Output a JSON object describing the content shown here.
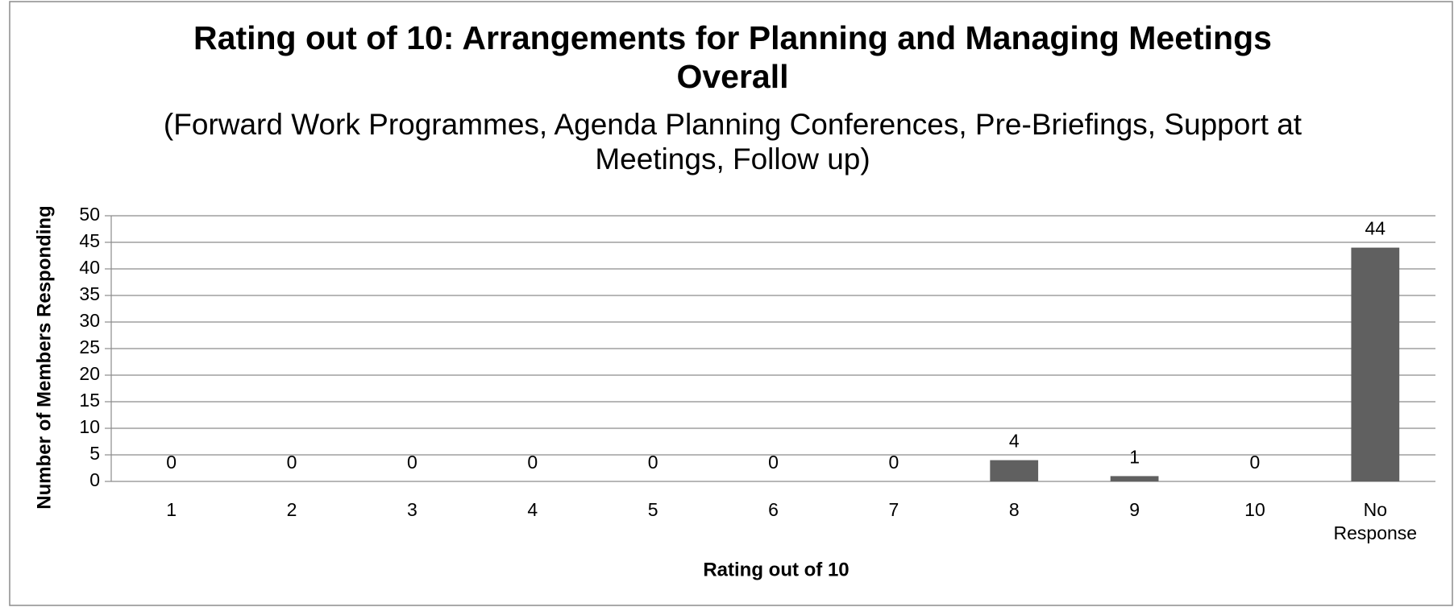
{
  "chart_data": {
    "type": "bar",
    "title": "Rating out of 10: Arrangements for Planning and Managing Meetings Overall",
    "subtitle": "(Forward Work Programmes, Agenda Planning Conferences, Pre-Briefings, Support at Meetings, Follow up)",
    "x_label": "Rating out of 10",
    "y_label": "Number of Members Responding",
    "categories": [
      "1",
      "2",
      "3",
      "4",
      "5",
      "6",
      "7",
      "8",
      "9",
      "10",
      "No Response"
    ],
    "values": [
      0,
      0,
      0,
      0,
      0,
      0,
      0,
      4,
      1,
      0,
      44
    ],
    "color": "#606060",
    "ylim": [
      0,
      50
    ],
    "yticks": [
      0,
      5,
      10,
      15,
      20,
      25,
      30,
      35,
      40,
      45,
      50
    ],
    "grid": true
  }
}
